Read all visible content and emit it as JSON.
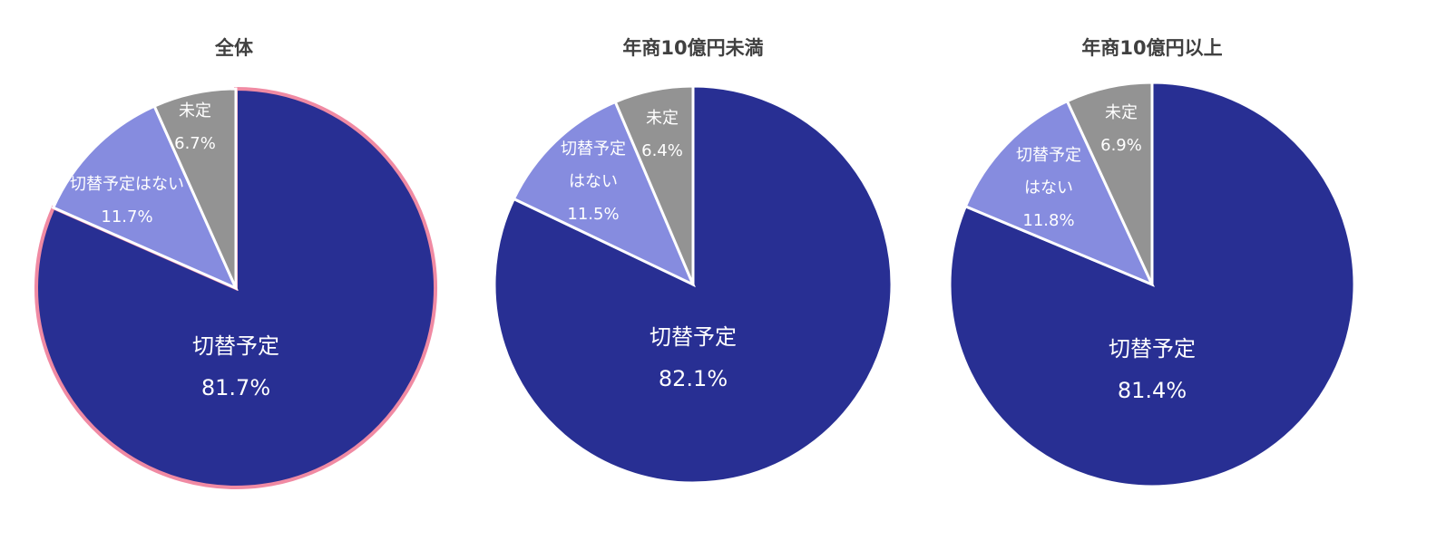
{
  "chart_data": [
    {
      "type": "pie",
      "title": "全体",
      "highlighted": true,
      "slices": [
        {
          "label": "切替予定",
          "label_lines": [
            "切替予定"
          ],
          "value": 81.7,
          "value_text": "81.7%",
          "color": "#282f93"
        },
        {
          "label": "切替予定はない",
          "label_lines": [
            "切替予定はない"
          ],
          "value": 11.7,
          "value_text": "11.7%",
          "color": "#868cdf"
        },
        {
          "label": "未定",
          "label_lines": [
            "未定"
          ],
          "value": 6.7,
          "value_text": "6.7%",
          "color": "#939393"
        }
      ]
    },
    {
      "type": "pie",
      "title": "年商10億円未満",
      "highlighted": false,
      "slices": [
        {
          "label": "切替予定",
          "label_lines": [
            "切替予定"
          ],
          "value": 82.1,
          "value_text": "82.1%",
          "color": "#282f93"
        },
        {
          "label": "切替予定はない",
          "label_lines": [
            "切替予定",
            "はない"
          ],
          "value": 11.5,
          "value_text": "11.5%",
          "color": "#868cdf"
        },
        {
          "label": "未定",
          "label_lines": [
            "未定"
          ],
          "value": 6.4,
          "value_text": "6.4%",
          "color": "#939393"
        }
      ]
    },
    {
      "type": "pie",
      "title": "年商10億円以上",
      "highlighted": false,
      "slices": [
        {
          "label": "切替予定",
          "label_lines": [
            "切替予定"
          ],
          "value": 81.4,
          "value_text": "81.4%",
          "color": "#282f93"
        },
        {
          "label": "切替予定はない",
          "label_lines": [
            "切替予定",
            "はない"
          ],
          "value": 11.8,
          "value_text": "11.8%",
          "color": "#868cdf"
        },
        {
          "label": "未定",
          "label_lines": [
            "未定"
          ],
          "value": 6.9,
          "value_text": "6.9%",
          "color": "#939393"
        }
      ]
    }
  ],
  "highlight_color": "#f08aa3"
}
